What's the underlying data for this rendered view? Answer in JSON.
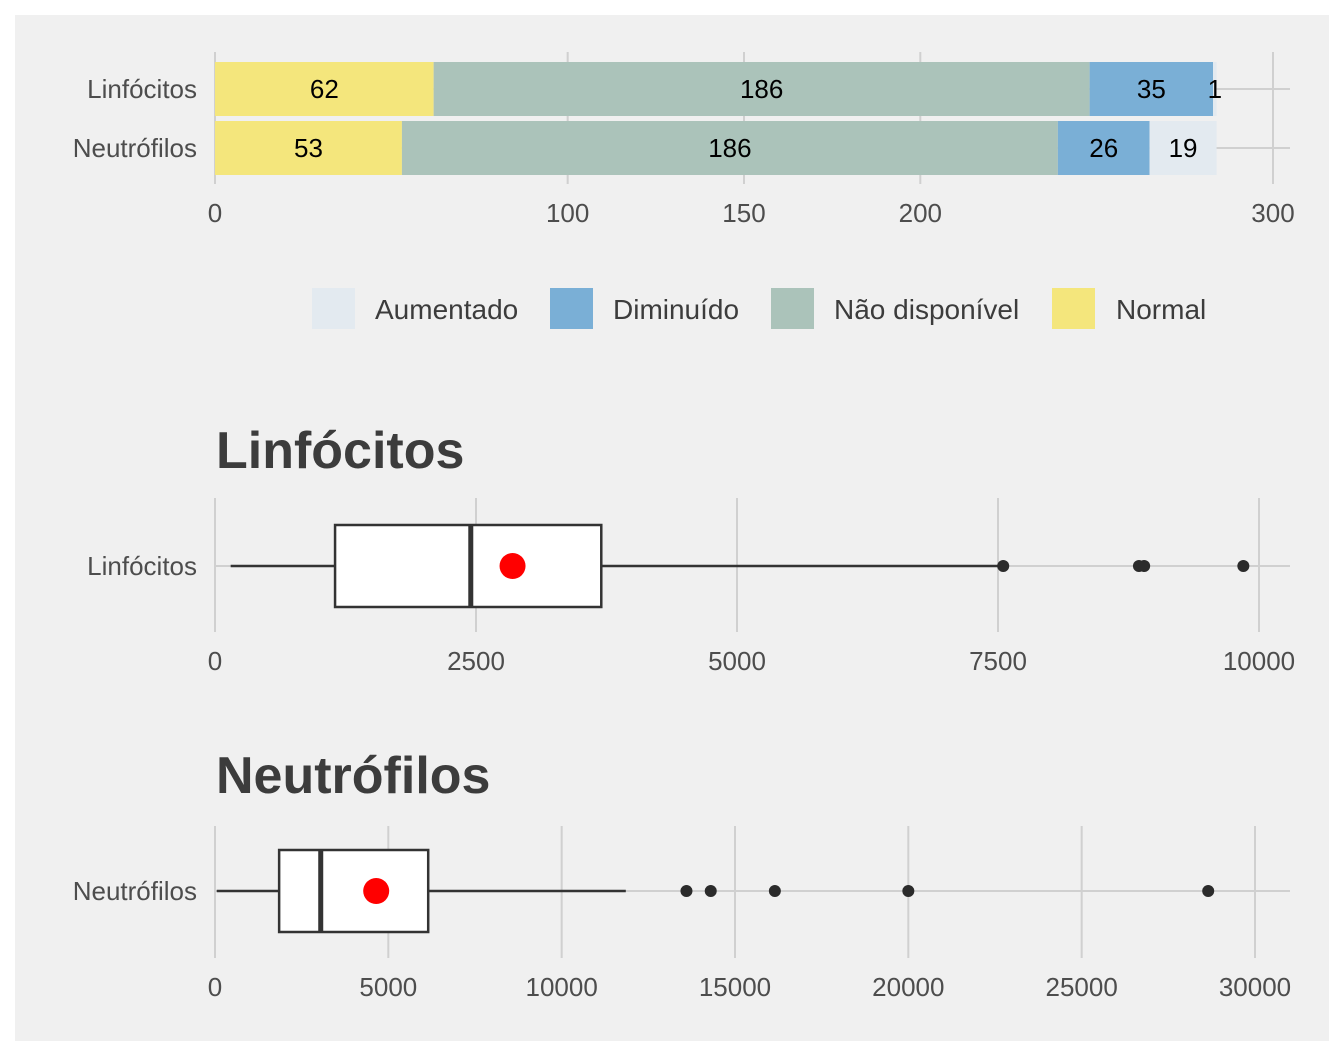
{
  "chart_data": [
    {
      "type": "bar",
      "orientation": "horizontal",
      "stacked": true,
      "categories": [
        "Linfócitos",
        "Neutrófilos"
      ],
      "series": [
        {
          "name": "Normal",
          "color": "#f4e67c",
          "values": [
            62,
            53
          ]
        },
        {
          "name": "Não disponível",
          "color": "#abc3ba",
          "values": [
            186,
            186
          ]
        },
        {
          "name": "Diminuído",
          "color": "#7aafd6",
          "values": [
            35,
            26
          ]
        },
        {
          "name": "Aumentado",
          "color": "#e3eaf0",
          "values": [
            1,
            19
          ]
        }
      ],
      "xlim": [
        0,
        300
      ],
      "xticks": [
        "0",
        "100",
        "150",
        "200",
        "300"
      ],
      "legend": {
        "position": "bottom",
        "entries": [
          "Aumentado",
          "Diminuído",
          "Não disponível",
          "Normal"
        ]
      },
      "grid": true
    },
    {
      "type": "boxplot",
      "title": "Linfócitos",
      "category": "Linfócitos",
      "whisker_low": 150,
      "q1": 1150,
      "median": 2450,
      "q3": 3700,
      "whisker_high": 7550,
      "mean": 2850,
      "mean_color": "#ff0000",
      "outliers": [
        7550,
        8850,
        8900,
        9850
      ],
      "xlim": [
        0,
        10300
      ],
      "xticks": [
        "0",
        "2500",
        "5000",
        "7500",
        "10000"
      ],
      "grid": true
    },
    {
      "type": "boxplot",
      "title": "Neutrófilos",
      "category": "Neutrófilos",
      "whisker_low": 50,
      "q1": 1850,
      "median": 3050,
      "q3": 6150,
      "whisker_high": 11850,
      "mean": 4650,
      "mean_color": "#ff0000",
      "outliers": [
        13600,
        14300,
        16150,
        20000,
        28650
      ],
      "xlim": [
        0,
        31000
      ],
      "xticks": [
        "0",
        "5000",
        "10000",
        "15000",
        "20000",
        "25000",
        "30000"
      ],
      "grid": true
    }
  ]
}
